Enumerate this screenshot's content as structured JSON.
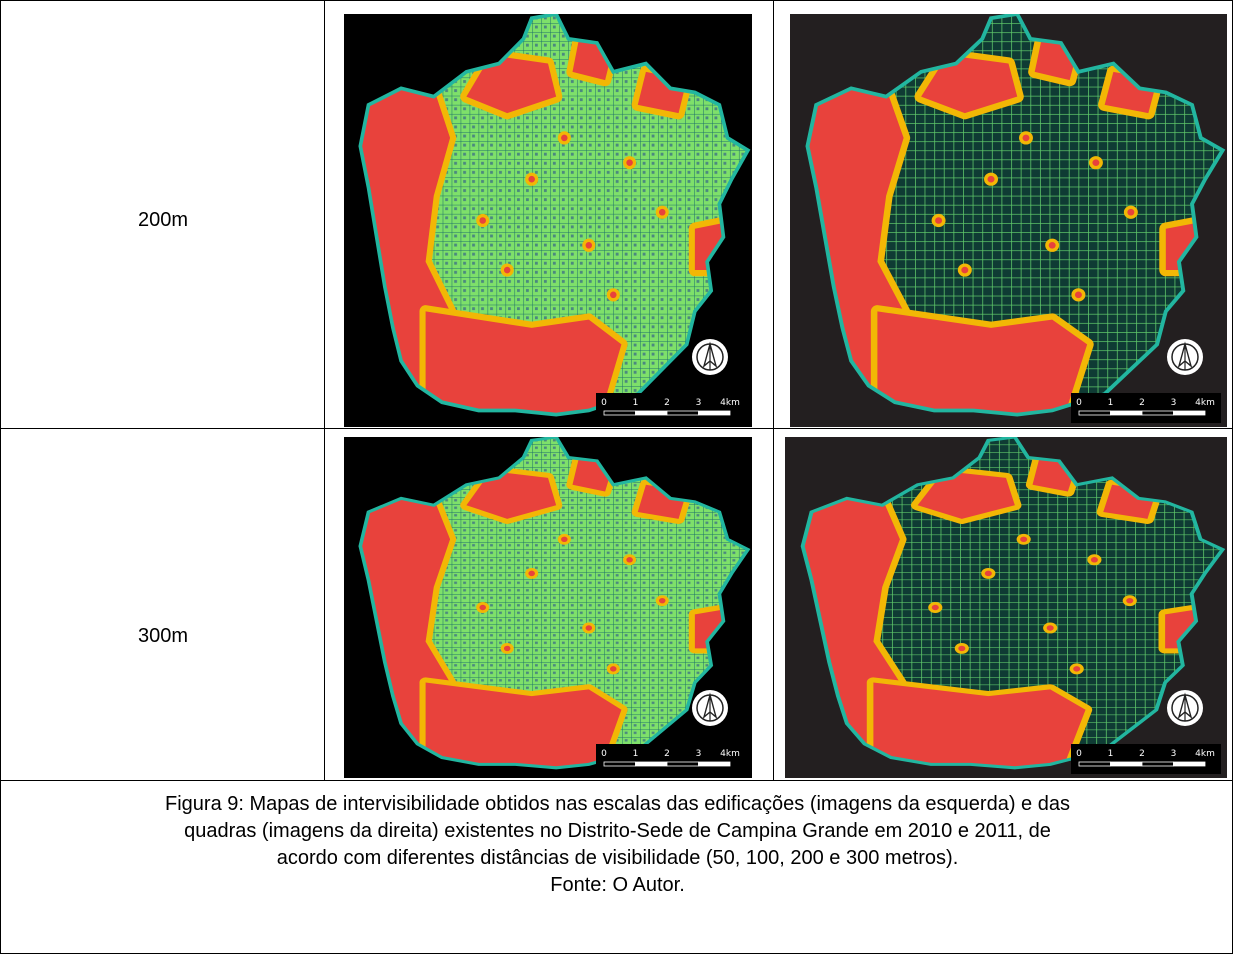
{
  "rows": [
    {
      "label": "200m"
    },
    {
      "label": "300m"
    }
  ],
  "maps": [
    {
      "scale_labels": [
        "0",
        "1",
        "2",
        "3",
        "4km"
      ],
      "icon": "north-arrow-icon",
      "style": "edificacoes"
    },
    {
      "scale_labels": [
        "0",
        "1",
        "2",
        "3",
        "4km"
      ],
      "icon": "north-arrow-icon",
      "style": "quadras"
    },
    {
      "scale_labels": [
        "0",
        "1",
        "2",
        "3",
        "4km"
      ],
      "icon": "north-arrow-icon",
      "style": "edificacoes"
    },
    {
      "scale_labels": [
        "0",
        "1",
        "2",
        "3",
        "4km"
      ],
      "icon": "north-arrow-icon",
      "style": "quadras"
    }
  ],
  "caption": {
    "line1": "Figura 9: Mapas de intervisibilidade obtidos nas escalas das edificações (imagens da esquerda) e das",
    "line2": "quadras (imagens da direita) existentes no Distrito-Sede de Campina Grande em 2010 e 2011, de",
    "line3": "acordo com diferentes distâncias de visibilidade (50, 100, 200 e 300 metros).",
    "source": "Fonte: O Autor."
  },
  "colors": {
    "background_left": "#000000",
    "background_right": "#231f20",
    "high_visibility": "#e8423c",
    "mid_visibility": "#f2b705",
    "low_visibility": "#7ee06a",
    "street_grid": "#1d6f6a",
    "dense_blue": "#20408f"
  }
}
